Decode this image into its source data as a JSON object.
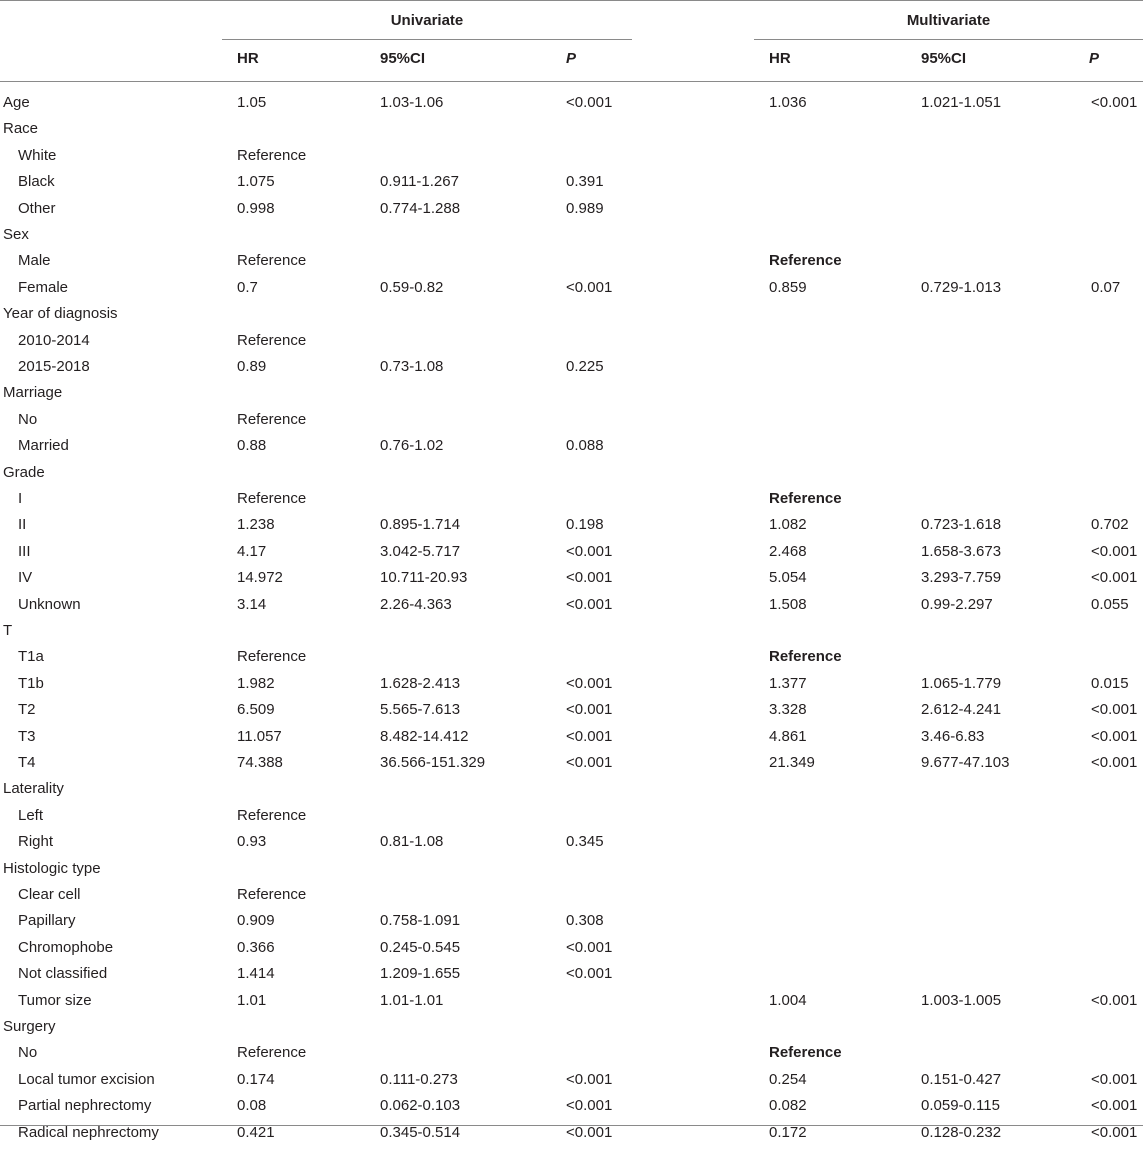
{
  "header": {
    "univariate": "Univariate",
    "multivariate": "Multivariate",
    "columns": [
      "HR",
      "95%CI",
      "P",
      "HR",
      "95%CI",
      "P"
    ]
  },
  "rows": [
    {
      "label": "Age",
      "indent": false,
      "uhr": "1.05",
      "uci": "1.03-1.06",
      "up": "<0.001",
      "mhr": "1.036",
      "mci": "1.021-1.051",
      "mp": "<0.001",
      "mbold": false
    },
    {
      "label": "Race",
      "indent": false,
      "uhr": "",
      "uci": "",
      "up": "",
      "mhr": "",
      "mci": "",
      "mp": "",
      "mbold": false
    },
    {
      "label": "White",
      "indent": true,
      "uhr": "Reference",
      "uci": "",
      "up": "",
      "mhr": "",
      "mci": "",
      "mp": "",
      "mbold": false
    },
    {
      "label": "Black",
      "indent": true,
      "uhr": "1.075",
      "uci": "0.911-1.267",
      "up": "0.391",
      "mhr": "",
      "mci": "",
      "mp": "",
      "mbold": false
    },
    {
      "label": "Other",
      "indent": true,
      "uhr": "0.998",
      "uci": "0.774-1.288",
      "up": "0.989",
      "mhr": "",
      "mci": "",
      "mp": "",
      "mbold": false
    },
    {
      "label": "Sex",
      "indent": false,
      "uhr": "",
      "uci": "",
      "up": "",
      "mhr": "",
      "mci": "",
      "mp": "",
      "mbold": false
    },
    {
      "label": "Male",
      "indent": true,
      "uhr": "Reference",
      "uci": "",
      "up": "",
      "mhr": "Reference",
      "mci": "",
      "mp": "",
      "mbold": true
    },
    {
      "label": "Female",
      "indent": true,
      "uhr": "0.7",
      "uci": "0.59-0.82",
      "up": "<0.001",
      "mhr": "0.859",
      "mci": "0.729-1.013",
      "mp": "0.07",
      "mbold": false
    },
    {
      "label": "Year of diagnosis",
      "indent": false,
      "uhr": "",
      "uci": "",
      "up": "",
      "mhr": "",
      "mci": "",
      "mp": "",
      "mbold": false
    },
    {
      "label": "2010-2014",
      "indent": true,
      "uhr": "Reference",
      "uci": "",
      "up": "",
      "mhr": "",
      "mci": "",
      "mp": "",
      "mbold": false
    },
    {
      "label": "2015-2018",
      "indent": true,
      "uhr": "0.89",
      "uci": "0.73-1.08",
      "up": "0.225",
      "mhr": "",
      "mci": "",
      "mp": "",
      "mbold": false
    },
    {
      "label": "Marriage",
      "indent": false,
      "uhr": "",
      "uci": "",
      "up": "",
      "mhr": "",
      "mci": "",
      "mp": "",
      "mbold": false
    },
    {
      "label": "No",
      "indent": true,
      "uhr": "Reference",
      "uci": "",
      "up": "",
      "mhr": "",
      "mci": "",
      "mp": "",
      "mbold": false
    },
    {
      "label": "Married",
      "indent": true,
      "uhr": "0.88",
      "uci": "0.76-1.02",
      "up": "0.088",
      "mhr": "",
      "mci": "",
      "mp": "",
      "mbold": false
    },
    {
      "label": "Grade",
      "indent": false,
      "uhr": "",
      "uci": "",
      "up": "",
      "mhr": "",
      "mci": "",
      "mp": "",
      "mbold": false
    },
    {
      "label": "I",
      "indent": true,
      "uhr": "Reference",
      "uci": "",
      "up": "",
      "mhr": "Reference",
      "mci": "",
      "mp": "",
      "mbold": true
    },
    {
      "label": "II",
      "indent": true,
      "uhr": "1.238",
      "uci": "0.895-1.714",
      "up": "0.198",
      "mhr": "1.082",
      "mci": "0.723-1.618",
      "mp": "0.702",
      "mbold": false
    },
    {
      "label": "III",
      "indent": true,
      "uhr": "4.17",
      "uci": "3.042-5.717",
      "up": "<0.001",
      "mhr": "2.468",
      "mci": "1.658-3.673",
      "mp": "<0.001",
      "mbold": false
    },
    {
      "label": "IV",
      "indent": true,
      "uhr": "14.972",
      "uci": "10.711-20.93",
      "up": "<0.001",
      "mhr": "5.054",
      "mci": "3.293-7.759",
      "mp": "<0.001",
      "mbold": false
    },
    {
      "label": "Unknown",
      "indent": true,
      "uhr": "3.14",
      "uci": "2.26-4.363",
      "up": "<0.001",
      "mhr": "1.508",
      "mci": "0.99-2.297",
      "mp": "0.055",
      "mbold": false
    },
    {
      "label": "T",
      "indent": false,
      "uhr": "",
      "uci": "",
      "up": "",
      "mhr": "",
      "mci": "",
      "mp": "",
      "mbold": false
    },
    {
      "label": "T1a",
      "indent": true,
      "uhr": "Reference",
      "uci": "",
      "up": "",
      "mhr": "Reference",
      "mci": "",
      "mp": "",
      "mbold": true
    },
    {
      "label": "T1b",
      "indent": true,
      "uhr": "1.982",
      "uci": "1.628-2.413",
      "up": "<0.001",
      "mhr": "1.377",
      "mci": "1.065-1.779",
      "mp": "0.015",
      "mbold": false
    },
    {
      "label": "T2",
      "indent": true,
      "uhr": "6.509",
      "uci": "5.565-7.613",
      "up": "<0.001",
      "mhr": "3.328",
      "mci": "2.612-4.241",
      "mp": "<0.001",
      "mbold": false
    },
    {
      "label": "T3",
      "indent": true,
      "uhr": "11.057",
      "uci": "8.482-14.412",
      "up": "<0.001",
      "mhr": "4.861",
      "mci": "3.46-6.83",
      "mp": "<0.001",
      "mbold": false
    },
    {
      "label": "T4",
      "indent": true,
      "uhr": "74.388",
      "uci": "36.566-151.329",
      "up": "<0.001",
      "mhr": "21.349",
      "mci": "9.677-47.103",
      "mp": "<0.001",
      "mbold": false
    },
    {
      "label": "Laterality",
      "indent": false,
      "uhr": "",
      "uci": "",
      "up": "",
      "mhr": "",
      "mci": "",
      "mp": "",
      "mbold": false
    },
    {
      "label": "Left",
      "indent": true,
      "uhr": "Reference",
      "uci": "",
      "up": "",
      "mhr": "",
      "mci": "",
      "mp": "",
      "mbold": false
    },
    {
      "label": "Right",
      "indent": true,
      "uhr": "0.93",
      "uci": "0.81-1.08",
      "up": "0.345",
      "mhr": "",
      "mci": "",
      "mp": "",
      "mbold": false
    },
    {
      "label": "Histologic type",
      "indent": false,
      "uhr": "",
      "uci": "",
      "up": "",
      "mhr": "",
      "mci": "",
      "mp": "",
      "mbold": false
    },
    {
      "label": "Clear cell",
      "indent": true,
      "uhr": "Reference",
      "uci": "",
      "up": "",
      "mhr": "",
      "mci": "",
      "mp": "",
      "mbold": false
    },
    {
      "label": "Papillary",
      "indent": true,
      "uhr": "0.909",
      "uci": "0.758-1.091",
      "up": "0.308",
      "mhr": "",
      "mci": "",
      "mp": "",
      "mbold": false
    },
    {
      "label": "Chromophobe",
      "indent": true,
      "uhr": "0.366",
      "uci": "0.245-0.545",
      "up": "<0.001",
      "mhr": "",
      "mci": "",
      "mp": "",
      "mbold": false
    },
    {
      "label": "Not classified",
      "indent": true,
      "uhr": "1.414",
      "uci": "1.209-1.655",
      "up": "<0.001",
      "mhr": "",
      "mci": "",
      "mp": "",
      "mbold": false
    },
    {
      "label": "Tumor size",
      "indent": true,
      "uhr": "1.01",
      "uci": "1.01-1.01",
      "up": "",
      "mhr": "1.004",
      "mci": "1.003-1.005",
      "mp": "<0.001",
      "mbold": false
    },
    {
      "label": "Surgery",
      "indent": false,
      "uhr": "",
      "uci": "",
      "up": "",
      "mhr": "",
      "mci": "",
      "mp": "",
      "mbold": false
    },
    {
      "label": "No",
      "indent": true,
      "uhr": "Reference",
      "uci": "",
      "up": "",
      "mhr": "Reference",
      "mci": "",
      "mp": "",
      "mbold": true
    },
    {
      "label": "Local tumor excision",
      "indent": true,
      "uhr": "0.174",
      "uci": "0.111-0.273",
      "up": "<0.001",
      "mhr": "0.254",
      "mci": "0.151-0.427",
      "mp": "<0.001",
      "mbold": false
    },
    {
      "label": "Partial nephrectomy",
      "indent": true,
      "uhr": "0.08",
      "uci": "0.062-0.103",
      "up": "<0.001",
      "mhr": "0.082",
      "mci": "0.059-0.115",
      "mp": "<0.001",
      "mbold": false
    },
    {
      "label": "Radical nephrectomy",
      "indent": true,
      "uhr": "0.421",
      "uci": "0.345-0.514",
      "up": "<0.001",
      "mhr": "0.172",
      "mci": "0.128-0.232",
      "mp": "<0.001",
      "mbold": false
    }
  ]
}
